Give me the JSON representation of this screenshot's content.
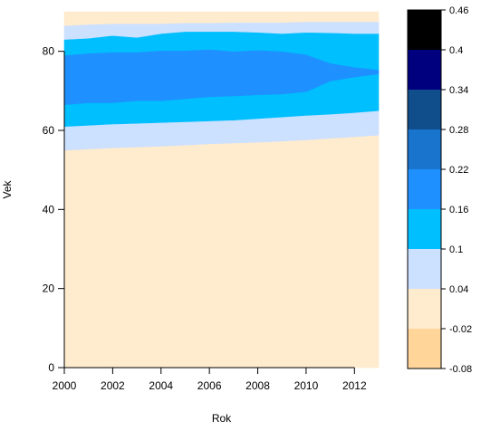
{
  "chart_data": {
    "type": "heatmap",
    "subtype": "filled-contour",
    "title": "",
    "xlabel": "Rok",
    "ylabel": "Vek",
    "xlim": [
      2000,
      2013
    ],
    "ylim": [
      0,
      90
    ],
    "x_ticks": [
      "2000",
      "2002",
      "2004",
      "2006",
      "2008",
      "2010",
      "2012"
    ],
    "y_ticks": [
      "0",
      "20",
      "40",
      "60",
      "80"
    ],
    "x": [
      2000,
      2001,
      2002,
      2003,
      2004,
      2005,
      2006,
      2007,
      2008,
      2009,
      2010,
      2011,
      2012,
      2013
    ],
    "boundaries": [
      {
        "name": "lower_0.04",
        "y": [
          55.0,
          55.3,
          55.6,
          55.8,
          56.0,
          56.3,
          56.6,
          56.8,
          57.0,
          57.3,
          57.6,
          58.0,
          58.4,
          58.8
        ]
      },
      {
        "name": "lower_0.1",
        "y": [
          61.0,
          61.3,
          61.6,
          61.8,
          62.0,
          62.2,
          62.4,
          62.6,
          63.0,
          63.4,
          63.8,
          64.1,
          64.5,
          65.0
        ]
      },
      {
        "name": "lower_0.16",
        "y": [
          66.5,
          67.0,
          67.0,
          67.5,
          67.5,
          68.0,
          68.5,
          68.7,
          69.0,
          69.2,
          69.8,
          72.5,
          73.5,
          74.3
        ]
      },
      {
        "name": "upper_0.16",
        "y": [
          79.0,
          79.5,
          79.8,
          79.8,
          80.2,
          80.2,
          80.5,
          80.0,
          80.3,
          80.0,
          79.2,
          77.0,
          76.0,
          75.3
        ]
      },
      {
        "name": "upper_0.1",
        "y": [
          83.0,
          83.3,
          84.0,
          83.5,
          84.5,
          85.0,
          85.0,
          85.0,
          84.8,
          84.5,
          84.8,
          84.7,
          84.5,
          84.5
        ]
      },
      {
        "name": "upper_0.04",
        "y": [
          86.5,
          86.8,
          87.0,
          87.0,
          87.0,
          87.2,
          87.2,
          87.3,
          87.3,
          87.3,
          87.5,
          87.5,
          87.5,
          87.5
        ]
      }
    ],
    "bands": [
      {
        "range": "-0.02 to 0.04",
        "color": "#FFEBCD",
        "from": "bottom",
        "to": "lower_0.04"
      },
      {
        "range": "0.04 to 0.1",
        "color": "#CCE0FF",
        "from": "lower_0.04",
        "to": "lower_0.1"
      },
      {
        "range": "0.1 to 0.16",
        "color": "#00BFFF",
        "from": "lower_0.1",
        "to": "lower_0.16"
      },
      {
        "range": "0.16 to 0.22",
        "color": "#1E90FF",
        "from": "lower_0.16",
        "to": "upper_0.16"
      },
      {
        "range": "0.1 to 0.16",
        "color": "#00BFFF",
        "from": "upper_0.16",
        "to": "upper_0.1"
      },
      {
        "range": "0.04 to 0.1",
        "color": "#CCE0FF",
        "from": "upper_0.1",
        "to": "upper_0.04"
      },
      {
        "range": "-0.02 to 0.04",
        "color": "#FFEBCD",
        "from": "upper_0.04",
        "to": "top"
      }
    ],
    "legend": {
      "position": "right",
      "levels": [
        "-0.08",
        "-0.02",
        "0.04",
        "0.1",
        "0.16",
        "0.22",
        "0.28",
        "0.34",
        "0.4",
        "0.46"
      ],
      "colors": [
        "#FFD59A",
        "#FFEBCD",
        "#CCE0FF",
        "#00BFFF",
        "#1E90FF",
        "#1874CD",
        "#104E8B",
        "#00007F",
        "#000000"
      ]
    },
    "grid": false
  }
}
